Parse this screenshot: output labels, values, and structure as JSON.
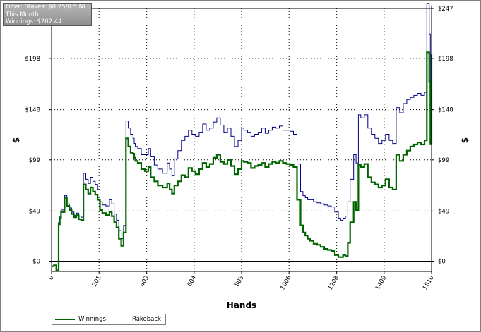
{
  "filter_box": {
    "line1": "Filter: Stakes: $0.25/0.5 NL",
    "line2": "This Month",
    "line3": "Winnings: $202.44"
  },
  "legend": {
    "winnings_label": "Winnings",
    "rakeback_label": "Rakeback"
  },
  "colors": {
    "winnings": "#006400",
    "rakeback": "#000080",
    "grid": "#000000",
    "zero_line": "#000000"
  },
  "chart_data": {
    "type": "line",
    "title": "",
    "xlabel": "Hands",
    "ylabel": "$",
    "xlim": [
      0,
      1610
    ],
    "ylim": [
      -10,
      247
    ],
    "x_ticks": [
      0,
      201,
      403,
      604,
      805,
      1006,
      1208,
      1409,
      1610
    ],
    "y_ticks_left": [
      {
        "value": 0,
        "label": "$0"
      },
      {
        "value": 49,
        "label": "$49"
      },
      {
        "value": 99,
        "label": "$99"
      },
      {
        "value": 148,
        "label": "$148"
      },
      {
        "value": 198,
        "label": "$198"
      }
    ],
    "y_ticks_right": [
      {
        "value": 0,
        "label": "$0"
      },
      {
        "value": 49,
        "label": "$49"
      },
      {
        "value": 99,
        "label": "$99"
      },
      {
        "value": 148,
        "label": "$148"
      },
      {
        "value": 198,
        "label": "$198"
      },
      {
        "value": 247,
        "label": "$247"
      }
    ],
    "grid": true,
    "legend_position": "bottom-left",
    "series": [
      {
        "name": "Winnings",
        "x": [
          0,
          10,
          20,
          30,
          35,
          40,
          55,
          65,
          75,
          85,
          95,
          105,
          115,
          125,
          135,
          145,
          155,
          165,
          175,
          185,
          195,
          205,
          215,
          230,
          245,
          255,
          265,
          275,
          285,
          295,
          305,
          315,
          325,
          335,
          345,
          350,
          355,
          365,
          380,
          395,
          410,
          420,
          435,
          450,
          470,
          490,
          500,
          510,
          520,
          535,
          550,
          565,
          580,
          595,
          610,
          625,
          640,
          655,
          670,
          685,
          700,
          715,
          730,
          745,
          760,
          775,
          790,
          805,
          815,
          830,
          845,
          860,
          875,
          890,
          905,
          920,
          935,
          950,
          965,
          980,
          995,
          1010,
          1025,
          1040,
          1055,
          1065,
          1075,
          1085,
          1095,
          1110,
          1125,
          1140,
          1155,
          1170,
          1185,
          1200,
          1215,
          1225,
          1235,
          1245,
          1255,
          1265,
          1280,
          1290,
          1300,
          1310,
          1325,
          1340,
          1355,
          1370,
          1385,
          1400,
          1415,
          1430,
          1445,
          1460,
          1475,
          1490,
          1505,
          1520,
          1535,
          1550,
          1565,
          1580,
          1590,
          1600,
          1605,
          1610
        ],
        "values": [
          -5,
          -4,
          -9,
          36,
          42,
          48,
          62,
          54,
          50,
          46,
          43,
          45,
          41,
          40,
          75,
          70,
          66,
          72,
          68,
          65,
          60,
          50,
          47,
          45,
          48,
          44,
          38,
          33,
          22,
          15,
          28,
          120,
          112,
          106,
          105,
          101,
          98,
          96,
          90,
          88,
          92,
          82,
          78,
          74,
          72,
          76,
          70,
          66,
          74,
          78,
          84,
          82,
          91,
          88,
          85,
          90,
          96,
          92,
          95,
          101,
          104,
          97,
          95,
          99,
          93,
          85,
          90,
          98,
          97,
          96,
          91,
          93,
          94,
          96,
          92,
          95,
          97,
          96,
          98,
          96,
          95,
          94,
          92,
          60,
          35,
          28,
          25,
          22,
          20,
          17,
          16,
          14,
          12,
          11,
          10,
          6,
          4,
          4,
          6,
          5,
          18,
          38,
          58,
          50,
          94,
          92,
          95,
          82,
          77,
          75,
          72,
          74,
          80,
          72,
          70,
          104,
          98,
          104,
          108,
          112,
          114,
          116,
          114,
          118,
          204,
          175,
          115,
          202
        ]
      },
      {
        "name": "Rakeback",
        "x": [
          0,
          10,
          20,
          30,
          35,
          40,
          55,
          65,
          75,
          85,
          95,
          105,
          115,
          125,
          135,
          145,
          155,
          165,
          175,
          185,
          195,
          205,
          215,
          230,
          245,
          255,
          265,
          275,
          285,
          295,
          305,
          315,
          325,
          335,
          345,
          350,
          355,
          365,
          380,
          395,
          410,
          420,
          435,
          450,
          470,
          490,
          500,
          510,
          520,
          535,
          550,
          565,
          580,
          595,
          610,
          625,
          640,
          655,
          670,
          685,
          700,
          715,
          730,
          745,
          760,
          775,
          790,
          805,
          815,
          830,
          845,
          860,
          875,
          890,
          905,
          920,
          935,
          950,
          965,
          980,
          995,
          1010,
          1025,
          1040,
          1055,
          1065,
          1075,
          1085,
          1095,
          1110,
          1125,
          1140,
          1155,
          1170,
          1185,
          1200,
          1215,
          1225,
          1235,
          1245,
          1255,
          1265,
          1280,
          1290,
          1300,
          1310,
          1325,
          1340,
          1355,
          1370,
          1385,
          1400,
          1415,
          1430,
          1445,
          1460,
          1475,
          1490,
          1505,
          1520,
          1535,
          1550,
          1565,
          1580,
          1590,
          1600,
          1605,
          1610
        ],
        "values": [
          -5,
          -4,
          -9,
          38,
          44,
          50,
          64,
          56,
          52,
          48,
          45,
          47,
          44,
          43,
          86,
          80,
          76,
          82,
          78,
          75,
          70,
          58,
          55,
          54,
          60,
          56,
          46,
          40,
          30,
          22,
          35,
          137,
          130,
          124,
          120,
          115,
          112,
          110,
          104,
          104,
          110,
          102,
          94,
          90,
          86,
          96,
          90,
          84,
          100,
          108,
          118,
          122,
          128,
          124,
          122,
          126,
          134,
          128,
          130,
          136,
          140,
          133,
          126,
          130,
          122,
          112,
          118,
          130,
          128,
          126,
          122,
          124,
          126,
          130,
          125,
          128,
          131,
          130,
          132,
          128,
          128,
          127,
          124,
          95,
          68,
          64,
          62,
          60,
          60,
          58,
          57,
          56,
          55,
          54,
          53,
          48,
          42,
          40,
          42,
          44,
          58,
          80,
          104,
          96,
          143,
          140,
          143,
          130,
          124,
          120,
          115,
          118,
          124,
          118,
          115,
          150,
          145,
          154,
          158,
          160,
          162,
          164,
          162,
          165,
          252,
          222,
          164,
          250
        ]
      }
    ]
  }
}
